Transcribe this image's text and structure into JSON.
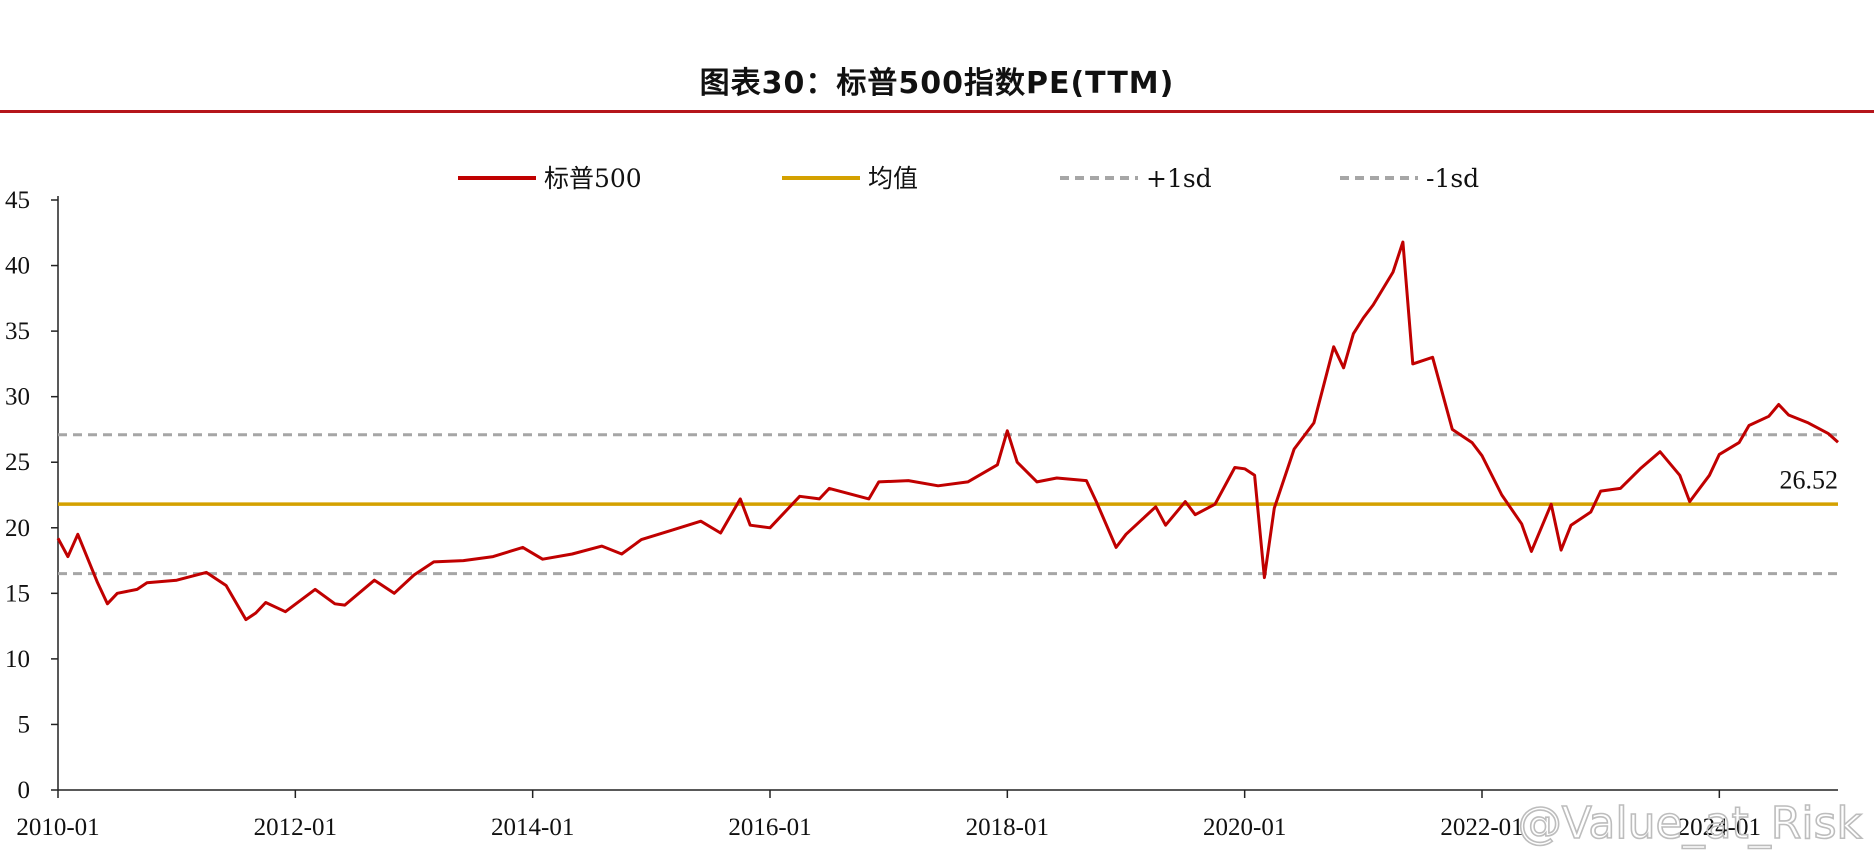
{
  "chart_data": {
    "type": "line",
    "title": "图表30：标普500指数PE(TTM)",
    "ylim": [
      0,
      45
    ],
    "y_ticks": [
      "0",
      "5",
      "10",
      "15",
      "20",
      "25",
      "30",
      "35",
      "40",
      "45"
    ],
    "x_ticks": [
      "2010-01",
      "2012-01",
      "2014-01",
      "2016-01",
      "2018-01",
      "2020-01",
      "2022-01",
      "2024-01"
    ],
    "grid": false,
    "legend_position": "top",
    "series": [
      {
        "name": "标普500",
        "color": "#c00000",
        "x": [
          "2010-01",
          "2010-02",
          "2010-03",
          "2010-05",
          "2010-06",
          "2010-07",
          "2010-09",
          "2010-10",
          "2011-01",
          "2011-04",
          "2011-06",
          "2011-08",
          "2011-09",
          "2011-10",
          "2011-12",
          "2012-03",
          "2012-05",
          "2012-06",
          "2012-09",
          "2012-11",
          "2013-01",
          "2013-03",
          "2013-06",
          "2013-09",
          "2013-12",
          "2014-02",
          "2014-05",
          "2014-08",
          "2014-10",
          "2014-12",
          "2015-03",
          "2015-06",
          "2015-08",
          "2015-10",
          "2015-11",
          "2016-01",
          "2016-02",
          "2016-04",
          "2016-06",
          "2016-07",
          "2016-11",
          "2016-12",
          "2017-03",
          "2017-06",
          "2017-09",
          "2017-12",
          "2018-01",
          "2018-02",
          "2018-04",
          "2018-06",
          "2018-09",
          "2018-10",
          "2018-12",
          "2019-01",
          "2019-04",
          "2019-05",
          "2019-07",
          "2019-08",
          "2019-10",
          "2019-12",
          "2020-01",
          "2020-02",
          "2020-03",
          "2020-04",
          "2020-06",
          "2020-08",
          "2020-10",
          "2020-11",
          "2020-12",
          "2021-01",
          "2021-02",
          "2021-04",
          "2021-05",
          "2021-06",
          "2021-08",
          "2021-10",
          "2021-12",
          "2022-01",
          "2022-03",
          "2022-05",
          "2022-06",
          "2022-08",
          "2022-09",
          "2022-10",
          "2022-12",
          "2023-01",
          "2023-03",
          "2023-05",
          "2023-07",
          "2023-09",
          "2023-10",
          "2023-12",
          "2024-01",
          "2024-03",
          "2024-04",
          "2024-06",
          "2024-07",
          "2024-08",
          "2024-10",
          "2024-12",
          "2025-01"
        ],
        "values": [
          19.2,
          17.8,
          19.5,
          15.8,
          14.2,
          15.0,
          15.3,
          15.8,
          16.0,
          16.6,
          15.6,
          13.0,
          13.5,
          14.3,
          13.6,
          15.3,
          14.2,
          14.1,
          16.0,
          15.0,
          16.4,
          17.4,
          17.5,
          17.8,
          18.5,
          17.6,
          18.0,
          18.6,
          18.0,
          19.1,
          19.8,
          20.5,
          19.6,
          22.2,
          20.2,
          20.0,
          20.8,
          22.4,
          22.2,
          23.0,
          22.2,
          23.5,
          23.6,
          23.2,
          23.5,
          24.8,
          27.4,
          25.0,
          23.5,
          23.8,
          23.6,
          22.0,
          18.5,
          19.5,
          21.6,
          20.2,
          22.0,
          21.0,
          21.8,
          24.6,
          24.5,
          24.0,
          16.2,
          21.5,
          26.0,
          28.0,
          33.8,
          32.2,
          34.8,
          36.0,
          37.0,
          39.5,
          41.8,
          32.5,
          33.0,
          27.5,
          26.5,
          25.5,
          22.5,
          20.3,
          18.2,
          21.8,
          18.3,
          20.2,
          21.2,
          22.8,
          23.0,
          24.5,
          25.8,
          24.0,
          22.0,
          24.0,
          25.6,
          26.5,
          27.8,
          28.5,
          29.4,
          28.6,
          28.0,
          27.2,
          26.52
        ]
      },
      {
        "name": "均值",
        "color": "#d4a100",
        "values": [
          21.8
        ]
      },
      {
        "name": "+1sd",
        "color": "#a6a6a6",
        "values": [
          27.1
        ]
      },
      {
        "name": "-1sd",
        "color": "#a6a6a6",
        "values": [
          16.5
        ]
      }
    ],
    "annotation": "26.52",
    "watermark": "@Value_at_Risk"
  }
}
